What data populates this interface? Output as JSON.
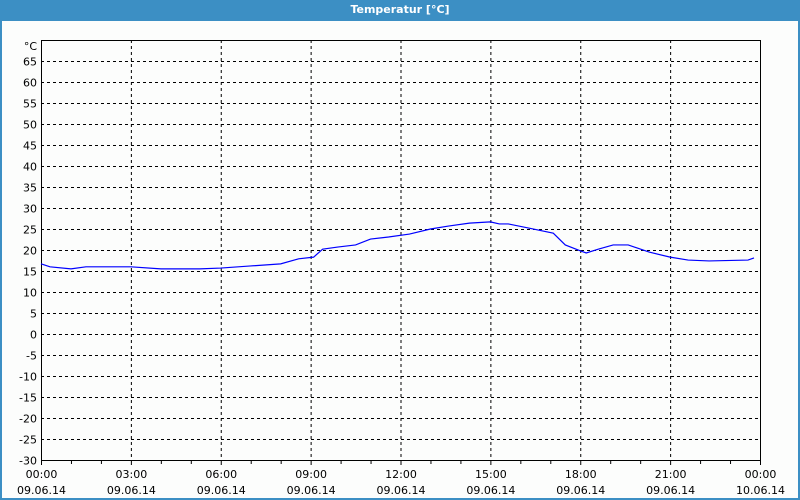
{
  "window": {
    "title": "Temperatur [°C]"
  },
  "colors": {
    "titlebar": "#3c8fc4",
    "series": "#0000ff",
    "grid": "#000000"
  },
  "chart_data": {
    "type": "line",
    "title": "Temperatur [°C]",
    "ylabel": "°C",
    "ylim": [
      -30,
      65
    ],
    "yticks": [
      65,
      60,
      55,
      50,
      45,
      40,
      35,
      30,
      25,
      20,
      15,
      10,
      5,
      0,
      -5,
      -10,
      -15,
      -20,
      -25,
      -30
    ],
    "xlim_hours": [
      0,
      24
    ],
    "xticks": [
      {
        "hour": 0,
        "time": "00:00",
        "date": "09.06.14"
      },
      {
        "hour": 3,
        "time": "03:00",
        "date": "09.06.14"
      },
      {
        "hour": 6,
        "time": "06:00",
        "date": "09.06.14"
      },
      {
        "hour": 9,
        "time": "09:00",
        "date": "09.06.14"
      },
      {
        "hour": 12,
        "time": "12:00",
        "date": "09.06.14"
      },
      {
        "hour": 15,
        "time": "15:00",
        "date": "09.06.14"
      },
      {
        "hour": 18,
        "time": "18:00",
        "date": "09.06.14"
      },
      {
        "hour": 21,
        "time": "21:00",
        "date": "09.06.14"
      },
      {
        "hour": 24,
        "time": "00:00",
        "date": "10.06.14"
      }
    ],
    "grid": true,
    "series": [
      {
        "x": [
          0,
          0.3,
          1,
          1.5,
          3,
          4,
          5.3,
          6,
          7,
          8,
          8.6,
          9.1,
          9.4,
          9.9,
          10.5,
          11,
          11.6,
          12.3,
          13,
          13.6,
          14.3,
          15,
          15.3,
          15.6,
          16.3,
          17.1,
          17.5,
          18,
          18.2,
          18.6,
          19.1,
          19.6,
          20.3,
          21,
          21.6,
          22.3,
          23.6,
          23.8
        ],
        "y": [
          16.7,
          16.0,
          15.5,
          16.0,
          16.0,
          15.5,
          15.5,
          15.7,
          16.2,
          16.7,
          17.9,
          18.3,
          20.2,
          20.7,
          21.2,
          22.6,
          23.1,
          23.8,
          25.0,
          25.7,
          26.4,
          26.7,
          26.2,
          26.2,
          25.2,
          24.0,
          21.2,
          19.8,
          19.3,
          20.2,
          21.2,
          21.2,
          19.5,
          18.3,
          17.6,
          17.4,
          17.6,
          18.1
        ]
      }
    ]
  }
}
